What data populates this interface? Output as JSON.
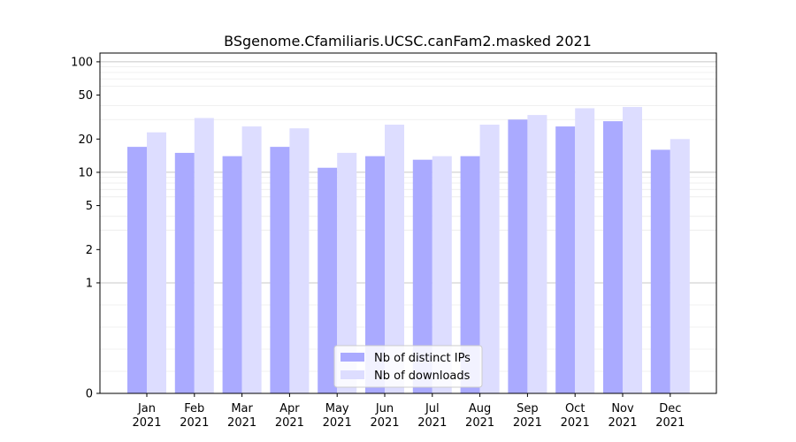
{
  "chart_data": {
    "type": "bar",
    "title": "BSgenome.Cfamiliaris.UCSC.canFam2.masked 2021",
    "xlabel": "",
    "ylabel": "",
    "categories": [
      [
        "Jan",
        "2021"
      ],
      [
        "Feb",
        "2021"
      ],
      [
        "Mar",
        "2021"
      ],
      [
        "Apr",
        "2021"
      ],
      [
        "May",
        "2021"
      ],
      [
        "Jun",
        "2021"
      ],
      [
        "Jul",
        "2021"
      ],
      [
        "Aug",
        "2021"
      ],
      [
        "Sep",
        "2021"
      ],
      [
        "Oct",
        "2021"
      ],
      [
        "Nov",
        "2021"
      ],
      [
        "Dec",
        "2021"
      ]
    ],
    "series": [
      {
        "name": "Nb of distinct IPs",
        "color": "#aaaaff",
        "values": [
          17,
          15,
          14,
          17,
          11,
          14,
          13,
          14,
          30,
          26,
          29,
          16
        ]
      },
      {
        "name": "Nb of downloads",
        "color": "#ddddff",
        "values": [
          23,
          31,
          26,
          25,
          15,
          27,
          14,
          27,
          33,
          38,
          39,
          20
        ]
      }
    ],
    "yscale": "symlog",
    "ylim": [
      0,
      120
    ],
    "yticks": [
      0,
      1,
      2,
      5,
      10,
      20,
      50,
      100
    ],
    "grid": true,
    "legend_position": "bottom-center"
  }
}
